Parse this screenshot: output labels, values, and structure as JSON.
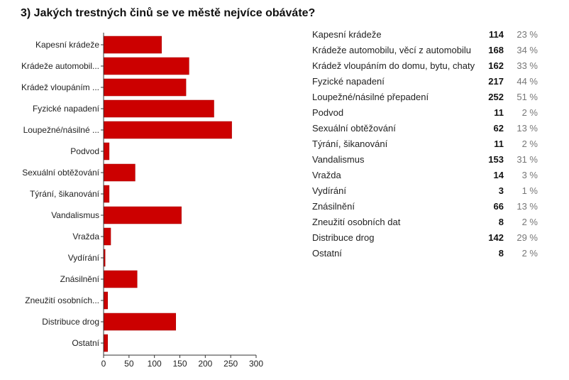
{
  "question": {
    "title": "3) Jakých trestných činů se ve městě nejvíce obáváte?"
  },
  "colors": {
    "bar": "#cc0000",
    "bar_stroke": "#a80000",
    "axis": "#333333",
    "label": "#222222"
  },
  "chart_data": {
    "type": "bar",
    "orientation": "horizontal",
    "categories": [
      "Kapesní krádeže",
      "Krádeže automobil...",
      "Krádež vloupáním ...",
      "Fyzické napadení",
      "Loupežné/násilné ...",
      "Podvod",
      "Sexuální obtěžování",
      "Týrání, šikanování",
      "Vandalismus",
      "Vražda",
      "Vydírání",
      "Znásilnění",
      "Zneužití osobních...",
      "Distribuce drog",
      "Ostatní"
    ],
    "values": [
      114,
      168,
      162,
      217,
      252,
      11,
      62,
      11,
      153,
      14,
      3,
      66,
      8,
      142,
      8
    ],
    "xlim": [
      0,
      300
    ],
    "xticks": [
      0,
      50,
      100,
      150,
      200,
      250,
      300
    ],
    "grid": false
  },
  "summary": {
    "rows": [
      {
        "label": "Kapesní krádeže",
        "count": "114",
        "percent": "23 %"
      },
      {
        "label": "Krádeže automobilu, věcí z automobilu",
        "count": "168",
        "percent": "34 %"
      },
      {
        "label": "Krádež vloupáním do domu, bytu, chaty",
        "count": "162",
        "percent": "33 %"
      },
      {
        "label": "Fyzické napadení",
        "count": "217",
        "percent": "44 %"
      },
      {
        "label": "Loupežné/násilné přepadení",
        "count": "252",
        "percent": "51 %"
      },
      {
        "label": "Podvod",
        "count": "11",
        "percent": "2 %"
      },
      {
        "label": "Sexuální obtěžování",
        "count": "62",
        "percent": "13 %"
      },
      {
        "label": "Týrání, šikanování",
        "count": "11",
        "percent": "2 %"
      },
      {
        "label": "Vandalismus",
        "count": "153",
        "percent": "31 %"
      },
      {
        "label": "Vražda",
        "count": "14",
        "percent": "3 %"
      },
      {
        "label": "Vydírání",
        "count": "3",
        "percent": "1 %"
      },
      {
        "label": "Znásilnění",
        "count": "66",
        "percent": "13 %"
      },
      {
        "label": "Zneužití osobních dat",
        "count": "8",
        "percent": "2 %"
      },
      {
        "label": "Distribuce drog",
        "count": "142",
        "percent": "29 %"
      },
      {
        "label": "Ostatní",
        "count": "8",
        "percent": "2 %"
      }
    ]
  }
}
